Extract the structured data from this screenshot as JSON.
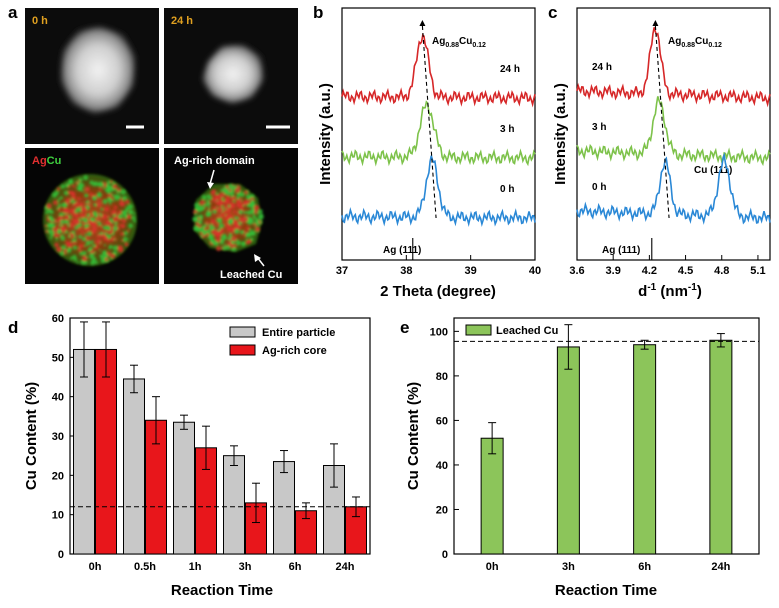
{
  "figure": {
    "panel_labels": [
      "a",
      "b",
      "c",
      "d",
      "e"
    ],
    "colors": {
      "red": "#d62728",
      "green": "#7dc24a",
      "blue": "#2a88d6",
      "gray": "#c8c8c8",
      "dark_red": "#e8161b",
      "bar_green": "#8cc55a"
    }
  },
  "panel_a": {
    "tiles": [
      {
        "time": "0 h",
        "type": "haadf"
      },
      {
        "time": "24 h",
        "type": "haadf"
      },
      {
        "type": "eds"
      },
      {
        "type": "eds"
      }
    ],
    "eds_legend": {
      "ag": "Ag",
      "cu": "Cu"
    },
    "annotations": {
      "domain": "Ag-rich domain",
      "leached": "Leached Cu"
    }
  },
  "chart_data": [
    {
      "id": "b",
      "type": "line",
      "xlabel": "2 Theta (degree)",
      "ylabel": "Intensity (a.u.)",
      "xlim": [
        37,
        40
      ],
      "xticks": [
        "37",
        "38",
        "39",
        "40"
      ],
      "peak_label_base": "Ag",
      "peak_label_sub1": "0.88",
      "peak_label_mid": "Cu",
      "peak_label_sub2": "0.12",
      "reference_label": "Ag (111)",
      "reference_x": 38.1,
      "series": [
        {
          "name": "24 h",
          "offset": 2.0,
          "peak": 38.25,
          "width": 0.13,
          "height": 0.65,
          "color": "#d62728"
        },
        {
          "name": "3 h",
          "offset": 1.0,
          "peak": 38.32,
          "width": 0.15,
          "height": 0.55,
          "color": "#7dc24a"
        },
        {
          "name": "0 h",
          "offset": 0.0,
          "peak": 38.4,
          "width": 0.13,
          "height": 0.6,
          "color": "#2a88d6"
        }
      ]
    },
    {
      "id": "c",
      "type": "line",
      "xlabel": "d-1 (nm-1)",
      "xlabel_main": "d",
      "xlabel_sup1": "-1",
      "xlabel_mid": " (nm",
      "xlabel_sup2": "-1",
      "xlabel_end": ")",
      "ylabel": "Intensity (a.u.)",
      "xlim": [
        3.6,
        5.2
      ],
      "xticks": [
        "3.6",
        "3.9",
        "4.2",
        "4.5",
        "4.8",
        "5.1"
      ],
      "peak_label_base": "Ag",
      "peak_label_sub1": "0.88",
      "peak_label_mid": "Cu",
      "peak_label_sub2": "0.12",
      "reference_label": "Ag (111)",
      "reference_x": 4.22,
      "cu_label": "Cu (111)",
      "series": [
        {
          "name": "24 h",
          "offset": 2.0,
          "peak": 4.25,
          "width": 0.06,
          "height": 0.7,
          "color": "#d62728"
        },
        {
          "name": "3 h",
          "offset": 1.0,
          "peak": 4.28,
          "width": 0.07,
          "height": 0.55,
          "color": "#7dc24a"
        },
        {
          "name": "0 h",
          "offset": 0.0,
          "peak": 4.33,
          "width": 0.06,
          "height": 0.55,
          "color": "#2a88d6",
          "cu_peak": 4.82,
          "cu_height": 0.58
        }
      ]
    },
    {
      "id": "d",
      "type": "bar",
      "xlabel": "Reaction Time",
      "ylabel": "Cu Content (%)",
      "ylim": [
        0,
        60
      ],
      "yticks": [
        "0",
        "10",
        "20",
        "30",
        "40",
        "50",
        "60"
      ],
      "categories": [
        "0h",
        "0.5h",
        "1h",
        "3h",
        "6h",
        "24h"
      ],
      "reference_line": 12,
      "series": [
        {
          "name": "Entire particle",
          "color": "#c8c8c8",
          "values": [
            52,
            44.5,
            33.5,
            25,
            23.5,
            22.5
          ],
          "errors": [
            7,
            3.5,
            1.8,
            2.5,
            2.8,
            5.5
          ]
        },
        {
          "name": "Ag-rich core",
          "color": "#e8161b",
          "values": [
            52,
            34,
            27,
            13,
            11,
            12
          ],
          "errors": [
            7,
            6,
            5.5,
            5,
            2,
            2.5
          ]
        }
      ]
    },
    {
      "id": "e",
      "type": "bar",
      "xlabel": "Reaction Time",
      "ylabel": "Cu Content (%)",
      "ylim": [
        0,
        106
      ],
      "yticks": [
        "0",
        "20",
        "40",
        "60",
        "80",
        "100"
      ],
      "categories": [
        "0h",
        "3h",
        "6h",
        "24h"
      ],
      "reference_line": 95.5,
      "series": [
        {
          "name": "Leached Cu",
          "color": "#8cc55a",
          "values": [
            52,
            93,
            94,
            96
          ],
          "errors": [
            7,
            10,
            2,
            3
          ]
        }
      ]
    }
  ]
}
